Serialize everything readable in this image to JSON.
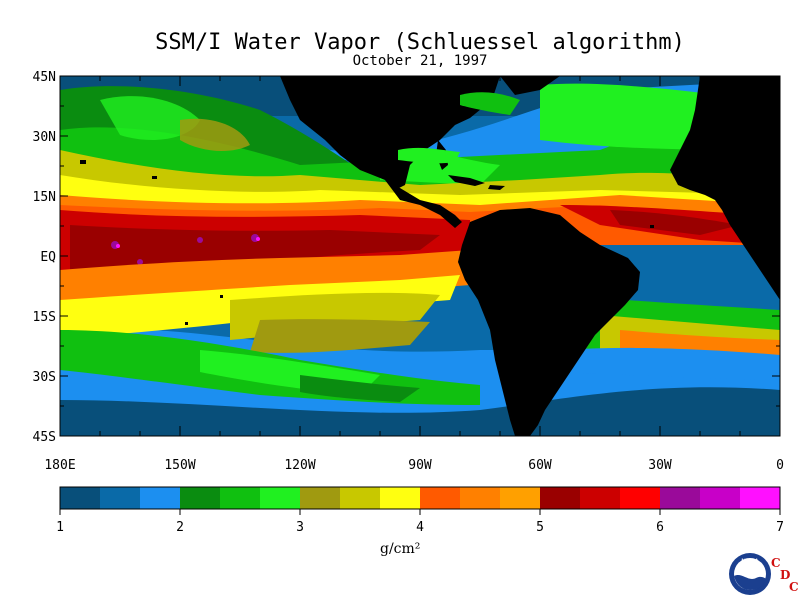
{
  "title": "SSM/I Water Vapor (Schluessel algorithm)",
  "subtitle": "October 21, 1997",
  "lat_labels": [
    "45N",
    "30N",
    "15N",
    "EQ",
    "15S",
    "30S",
    "45S"
  ],
  "lon_labels": [
    "180E",
    "150W",
    "120W",
    "90W",
    "60W",
    "30W",
    "0"
  ],
  "colorbar": {
    "colors": [
      "#084f7a",
      "#0a6aa8",
      "#1c8ff0",
      "#0a8c10",
      "#10c010",
      "#20f020",
      "#a09a10",
      "#c8c800",
      "#ffff10",
      "#ff5a00",
      "#ff8000",
      "#ffa000",
      "#9a0000",
      "#cc0000",
      "#ff0000",
      "#9a0a9a",
      "#c800c8",
      "#ff10ff"
    ],
    "tick_labels": [
      "1",
      "2",
      "3",
      "4",
      "5",
      "6",
      "7"
    ],
    "units": "g/cm²"
  },
  "colors": {
    "land": "#000000",
    "ocean_low": "#084f7a",
    "accent_red": "#d01010"
  },
  "logo": {
    "text": "NOAA",
    "side_letters": [
      "C",
      "D",
      "C"
    ]
  }
}
